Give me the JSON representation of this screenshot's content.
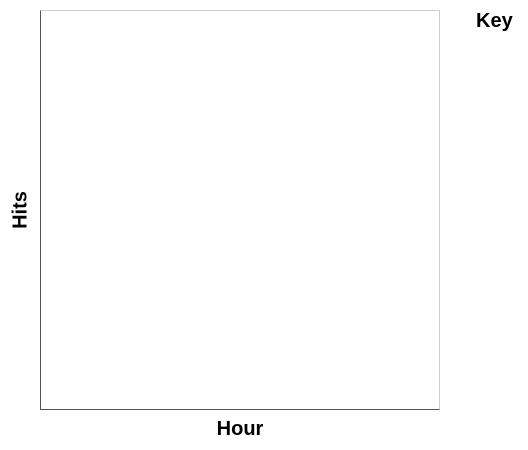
{
  "chart_data": {
    "type": "line",
    "title": "",
    "xlabel": "Hour",
    "ylabel": "Hits",
    "legend_title": "Key",
    "legend_placement": "right",
    "grid": false,
    "series": []
  }
}
